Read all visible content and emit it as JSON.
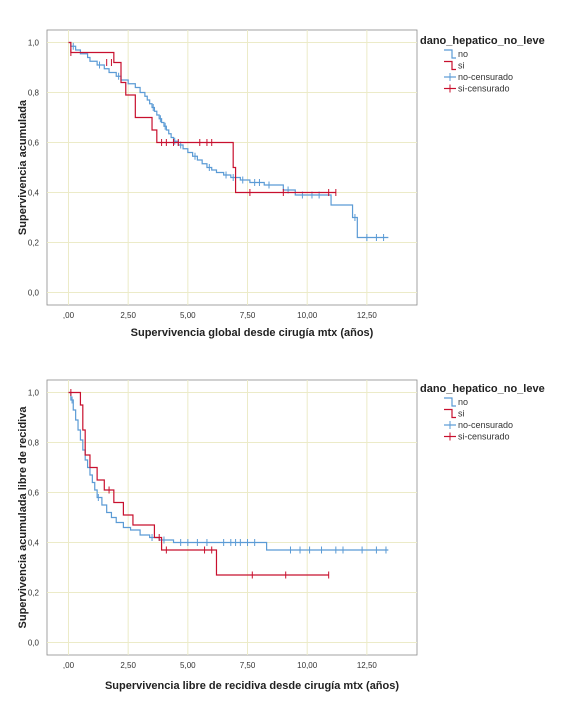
{
  "colors": {
    "no": "#5b9bd5",
    "si": "#c8102e",
    "grid": "#ecebc8",
    "frame": "#8c8c8c"
  },
  "chart_data": [
    {
      "type": "line",
      "subtype": "kaplan-meier",
      "xlabel": "Supervivencia global desde cirugía mtx (años)",
      "ylabel": "Supervivencia acumulada",
      "xlim": [
        -0.9,
        14.6
      ],
      "ylim": [
        -0.05,
        1.05
      ],
      "x_ticks": [
        0,
        2.5,
        5,
        7.5,
        10,
        12.5
      ],
      "x_tick_labels": [
        ",00",
        "2,50",
        "5,00",
        "7,50",
        "10,00",
        "12,50"
      ],
      "y_ticks": [
        0,
        0.2,
        0.4,
        0.6,
        0.8,
        1.0
      ],
      "y_tick_labels": [
        "0,0",
        "0,2",
        "0,4",
        "0,6",
        "0,8",
        "1,0"
      ],
      "grid": true,
      "legend": {
        "title": "dano_hepatico_no_leve",
        "placement": "top-right",
        "entries": [
          "no",
          "si",
          "no-censurado",
          "si-censurado"
        ]
      },
      "series": [
        {
          "name": "no",
          "color_key": "no",
          "steps": [
            [
              0,
              1.0
            ],
            [
              0.1,
              0.985
            ],
            [
              0.3,
              0.97
            ],
            [
              0.5,
              0.955
            ],
            [
              0.8,
              0.94
            ],
            [
              0.9,
              0.925
            ],
            [
              1.2,
              0.91
            ],
            [
              1.5,
              0.895
            ],
            [
              1.7,
              0.88
            ],
            [
              2.0,
              0.865
            ],
            [
              2.2,
              0.85
            ],
            [
              2.5,
              0.835
            ],
            [
              2.8,
              0.82
            ],
            [
              3.0,
              0.8
            ],
            [
              3.2,
              0.785
            ],
            [
              3.3,
              0.77
            ],
            [
              3.4,
              0.755
            ],
            [
              3.5,
              0.74
            ],
            [
              3.6,
              0.725
            ],
            [
              3.7,
              0.71
            ],
            [
              3.8,
              0.695
            ],
            [
              3.9,
              0.68
            ],
            [
              4.0,
              0.665
            ],
            [
              4.1,
              0.65
            ],
            [
              4.2,
              0.635
            ],
            [
              4.3,
              0.62
            ],
            [
              4.4,
              0.605
            ],
            [
              4.6,
              0.59
            ],
            [
              4.8,
              0.575
            ],
            [
              5.0,
              0.56
            ],
            [
              5.2,
              0.545
            ],
            [
              5.4,
              0.53
            ],
            [
              5.6,
              0.515
            ],
            [
              5.8,
              0.5
            ],
            [
              6.0,
              0.49
            ],
            [
              6.2,
              0.48
            ],
            [
              6.5,
              0.47
            ],
            [
              6.8,
              0.46
            ],
            [
              7.2,
              0.45
            ],
            [
              7.6,
              0.44
            ],
            [
              8.2,
              0.43
            ],
            [
              9.0,
              0.41
            ],
            [
              9.5,
              0.39
            ],
            [
              11.0,
              0.35
            ],
            [
              11.9,
              0.3
            ],
            [
              12.1,
              0.22
            ]
          ],
          "end_x": 13.4,
          "censored": [
            [
              0.2,
              0.985
            ],
            [
              1.3,
              0.91
            ],
            [
              2.1,
              0.865
            ],
            [
              3.55,
              0.74
            ],
            [
              3.85,
              0.695
            ],
            [
              4.05,
              0.665
            ],
            [
              4.45,
              0.605
            ],
            [
              4.7,
              0.59
            ],
            [
              5.3,
              0.545
            ],
            [
              5.9,
              0.5
            ],
            [
              6.6,
              0.47
            ],
            [
              6.9,
              0.46
            ],
            [
              7.3,
              0.45
            ],
            [
              7.8,
              0.44
            ],
            [
              8.0,
              0.44
            ],
            [
              8.4,
              0.43
            ],
            [
              9.2,
              0.41
            ],
            [
              9.8,
              0.39
            ],
            [
              10.2,
              0.39
            ],
            [
              10.5,
              0.39
            ],
            [
              12.0,
              0.3
            ],
            [
              12.5,
              0.22
            ],
            [
              12.9,
              0.22
            ],
            [
              13.2,
              0.22
            ]
          ]
        },
        {
          "name": "si",
          "color_key": "si",
          "steps": [
            [
              0,
              1.0
            ],
            [
              0.1,
              0.96
            ],
            [
              1.9,
              0.92
            ],
            [
              2.2,
              0.84
            ],
            [
              2.4,
              0.79
            ],
            [
              2.8,
              0.7
            ],
            [
              3.5,
              0.65
            ],
            [
              3.7,
              0.6
            ],
            [
              6.9,
              0.5
            ],
            [
              7.0,
              0.4
            ]
          ],
          "end_x": 11.2,
          "censored": [
            [
              0.1,
              0.96
            ],
            [
              1.6,
              0.92
            ],
            [
              1.8,
              0.92
            ],
            [
              3.9,
              0.6
            ],
            [
              4.1,
              0.6
            ],
            [
              4.4,
              0.6
            ],
            [
              4.6,
              0.6
            ],
            [
              5.5,
              0.6
            ],
            [
              5.8,
              0.6
            ],
            [
              6.0,
              0.6
            ],
            [
              7.6,
              0.4
            ],
            [
              9.0,
              0.4
            ],
            [
              10.9,
              0.4
            ],
            [
              11.2,
              0.4
            ]
          ]
        }
      ]
    },
    {
      "type": "line",
      "subtype": "kaplan-meier",
      "xlabel": "Supervivencia libre de recidiva desde cirugía mtx (años)",
      "ylabel": "Supervivencia acumulada libre de recidiva",
      "xlim": [
        -0.9,
        14.6
      ],
      "ylim": [
        -0.05,
        1.05
      ],
      "x_ticks": [
        0,
        2.5,
        5,
        7.5,
        10,
        12.5
      ],
      "x_tick_labels": [
        ",00",
        "2,50",
        "5,00",
        "7,50",
        "10,00",
        "12,50"
      ],
      "y_ticks": [
        0,
        0.2,
        0.4,
        0.6,
        0.8,
        1.0
      ],
      "y_tick_labels": [
        "0,0",
        "0,2",
        "0,4",
        "0,6",
        "0,8",
        "1,0"
      ],
      "grid": true,
      "legend": {
        "title": "dano_hepatico_no_leve",
        "placement": "top-right",
        "entries": [
          "no",
          "si",
          "no-censurado",
          "si-censurado"
        ]
      },
      "series": [
        {
          "name": "no",
          "color_key": "no",
          "steps": [
            [
              0,
              1.0
            ],
            [
              0.1,
              0.97
            ],
            [
              0.2,
              0.93
            ],
            [
              0.3,
              0.89
            ],
            [
              0.4,
              0.85
            ],
            [
              0.5,
              0.81
            ],
            [
              0.6,
              0.77
            ],
            [
              0.7,
              0.73
            ],
            [
              0.8,
              0.7
            ],
            [
              0.9,
              0.67
            ],
            [
              1.0,
              0.64
            ],
            [
              1.1,
              0.61
            ],
            [
              1.2,
              0.58
            ],
            [
              1.4,
              0.55
            ],
            [
              1.6,
              0.52
            ],
            [
              1.8,
              0.5
            ],
            [
              2.0,
              0.48
            ],
            [
              2.3,
              0.46
            ],
            [
              2.6,
              0.45
            ],
            [
              3.0,
              0.43
            ],
            [
              3.4,
              0.42
            ],
            [
              3.8,
              0.41
            ],
            [
              4.4,
              0.4
            ],
            [
              8.3,
              0.37
            ]
          ],
          "end_x": 13.4,
          "censored": [
            [
              0.15,
              0.97
            ],
            [
              1.25,
              0.58
            ],
            [
              3.5,
              0.42
            ],
            [
              4.0,
              0.41
            ],
            [
              4.7,
              0.4
            ],
            [
              5.0,
              0.4
            ],
            [
              5.4,
              0.4
            ],
            [
              5.8,
              0.4
            ],
            [
              6.5,
              0.4
            ],
            [
              6.8,
              0.4
            ],
            [
              7.0,
              0.4
            ],
            [
              7.2,
              0.4
            ],
            [
              7.5,
              0.4
            ],
            [
              7.8,
              0.4
            ],
            [
              9.3,
              0.37
            ],
            [
              9.7,
              0.37
            ],
            [
              10.1,
              0.37
            ],
            [
              10.6,
              0.37
            ],
            [
              11.2,
              0.37
            ],
            [
              11.5,
              0.37
            ],
            [
              12.3,
              0.37
            ],
            [
              12.9,
              0.37
            ],
            [
              13.3,
              0.37
            ]
          ]
        },
        {
          "name": "si",
          "color_key": "si",
          "steps": [
            [
              0,
              1.0
            ],
            [
              0.5,
              0.95
            ],
            [
              0.6,
              0.85
            ],
            [
              0.7,
              0.75
            ],
            [
              0.9,
              0.7
            ],
            [
              1.2,
              0.65
            ],
            [
              1.5,
              0.61
            ],
            [
              1.9,
              0.56
            ],
            [
              2.3,
              0.51
            ],
            [
              2.7,
              0.47
            ],
            [
              3.6,
              0.42
            ],
            [
              3.9,
              0.37
            ],
            [
              6.2,
              0.27
            ]
          ],
          "end_x": 10.9,
          "censored": [
            [
              0.1,
              1.0
            ],
            [
              1.7,
              0.61
            ],
            [
              3.8,
              0.42
            ],
            [
              4.1,
              0.37
            ],
            [
              5.7,
              0.37
            ],
            [
              6.0,
              0.37
            ],
            [
              7.7,
              0.27
            ],
            [
              9.1,
              0.27
            ],
            [
              10.9,
              0.27
            ]
          ]
        }
      ]
    }
  ]
}
